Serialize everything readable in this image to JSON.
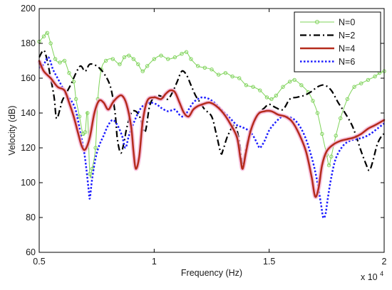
{
  "chart_data": {
    "type": "line",
    "title": "",
    "xlabel": "Frequency (Hz)",
    "ylabel": "Velocity (dB)",
    "x_multiplier_label": "x 10",
    "x_multiplier_exp": "4",
    "xlim": [
      0.5,
      2.0
    ],
    "ylim": [
      60,
      200
    ],
    "x_ticks": [
      0.5,
      1,
      1.5,
      2
    ],
    "x_tick_labels": [
      "0.5",
      "1",
      "1.5",
      "2"
    ],
    "y_ticks": [
      60,
      80,
      100,
      120,
      140,
      160,
      180,
      200
    ],
    "y_tick_labels": [
      "60",
      "80",
      "100",
      "120",
      "140",
      "160",
      "180",
      "200"
    ],
    "grid": false,
    "legend_position": "top-right",
    "series": [
      {
        "name": "N=0",
        "color": "#7fd35a",
        "style": "solid-circle-markers",
        "points": [
          [
            0.5,
            181
          ],
          [
            0.52,
            184
          ],
          [
            0.535,
            186
          ],
          [
            0.55,
            180
          ],
          [
            0.57,
            171
          ],
          [
            0.59,
            169
          ],
          [
            0.61,
            170
          ],
          [
            0.63,
            163
          ],
          [
            0.65,
            158
          ],
          [
            0.66,
            148
          ],
          [
            0.675,
            138
          ],
          [
            0.69,
            128
          ],
          [
            0.7,
            129
          ],
          [
            0.71,
            140
          ],
          [
            0.72,
            105
          ],
          [
            0.73,
            108
          ],
          [
            0.745,
            120
          ],
          [
            0.755,
            148
          ],
          [
            0.77,
            165
          ],
          [
            0.79,
            170
          ],
          [
            0.82,
            171
          ],
          [
            0.85,
            168
          ],
          [
            0.87,
            172
          ],
          [
            0.89,
            173
          ],
          [
            0.91,
            171
          ],
          [
            0.93,
            168
          ],
          [
            0.95,
            164
          ],
          [
            0.97,
            167
          ],
          [
            1.0,
            171
          ],
          [
            1.03,
            173
          ],
          [
            1.06,
            171
          ],
          [
            1.09,
            172
          ],
          [
            1.12,
            174
          ],
          [
            1.14,
            175
          ],
          [
            1.16,
            171
          ],
          [
            1.19,
            167
          ],
          [
            1.22,
            166
          ],
          [
            1.25,
            165
          ],
          [
            1.28,
            162
          ],
          [
            1.31,
            163
          ],
          [
            1.34,
            161
          ],
          [
            1.37,
            160
          ],
          [
            1.4,
            156
          ],
          [
            1.43,
            155
          ],
          [
            1.46,
            153
          ],
          [
            1.49,
            149
          ],
          [
            1.51,
            148
          ],
          [
            1.53,
            150
          ],
          [
            1.56,
            155
          ],
          [
            1.59,
            158
          ],
          [
            1.61,
            159
          ],
          [
            1.64,
            156
          ],
          [
            1.67,
            152
          ],
          [
            1.69,
            147
          ],
          [
            1.71,
            140
          ],
          [
            1.73,
            128
          ],
          [
            1.75,
            116
          ],
          [
            1.76,
            110
          ],
          [
            1.77,
            115
          ],
          [
            1.79,
            127
          ],
          [
            1.81,
            137
          ],
          [
            1.84,
            148
          ],
          [
            1.87,
            155
          ],
          [
            1.9,
            157
          ],
          [
            1.93,
            159
          ],
          [
            1.96,
            161
          ],
          [
            1.98,
            163
          ],
          [
            2.0,
            164
          ]
        ]
      },
      {
        "name": "N=2",
        "color": "#000000",
        "style": "dash-dot",
        "points": [
          [
            0.5,
            172
          ],
          [
            0.52,
            176
          ],
          [
            0.535,
            170
          ],
          [
            0.55,
            160
          ],
          [
            0.565,
            149
          ],
          [
            0.575,
            137
          ],
          [
            0.59,
            142
          ],
          [
            0.6,
            147
          ],
          [
            0.62,
            152
          ],
          [
            0.64,
            157
          ],
          [
            0.66,
            163
          ],
          [
            0.68,
            167
          ],
          [
            0.7,
            164
          ],
          [
            0.72,
            168
          ],
          [
            0.75,
            167
          ],
          [
            0.78,
            163
          ],
          [
            0.81,
            155
          ],
          [
            0.83,
            140
          ],
          [
            0.84,
            125
          ],
          [
            0.855,
            117
          ],
          [
            0.87,
            124
          ],
          [
            0.88,
            131
          ],
          [
            0.9,
            140
          ],
          [
            0.92,
            141
          ],
          [
            0.94,
            137
          ],
          [
            0.96,
            129
          ],
          [
            0.98,
            144
          ],
          [
            1.0,
            149
          ],
          [
            1.02,
            150
          ],
          [
            1.04,
            149
          ],
          [
            1.06,
            148
          ],
          [
            1.08,
            152
          ],
          [
            1.1,
            158
          ],
          [
            1.12,
            164
          ],
          [
            1.14,
            162
          ],
          [
            1.16,
            156
          ],
          [
            1.18,
            150
          ],
          [
            1.2,
            146
          ],
          [
            1.22,
            142
          ],
          [
            1.25,
            138
          ],
          [
            1.27,
            128
          ],
          [
            1.29,
            117
          ],
          [
            1.3,
            119
          ],
          [
            1.32,
            127
          ],
          [
            1.35,
            133
          ],
          [
            1.37,
            124
          ],
          [
            1.385,
            110
          ],
          [
            1.4,
            120
          ],
          [
            1.42,
            130
          ],
          [
            1.45,
            139
          ],
          [
            1.48,
            143
          ],
          [
            1.5,
            145
          ],
          [
            1.53,
            143
          ],
          [
            1.56,
            142
          ],
          [
            1.59,
            148
          ],
          [
            1.62,
            149
          ],
          [
            1.65,
            150
          ],
          [
            1.68,
            152
          ],
          [
            1.71,
            155
          ],
          [
            1.74,
            156
          ],
          [
            1.77,
            153
          ],
          [
            1.8,
            146
          ],
          [
            1.83,
            140
          ],
          [
            1.86,
            133
          ],
          [
            1.88,
            126
          ],
          [
            1.9,
            118
          ],
          [
            1.92,
            111
          ],
          [
            1.935,
            107
          ],
          [
            1.95,
            112
          ],
          [
            1.97,
            122
          ],
          [
            1.99,
            127
          ],
          [
            2.0,
            128
          ]
        ]
      },
      {
        "name": "N=4",
        "color": "#b52b1c",
        "style": "solid-thick",
        "points": [
          [
            0.5,
            170
          ],
          [
            0.52,
            164
          ],
          [
            0.55,
            160
          ],
          [
            0.58,
            155
          ],
          [
            0.61,
            153
          ],
          [
            0.63,
            146
          ],
          [
            0.65,
            138
          ],
          [
            0.67,
            128
          ],
          [
            0.685,
            121
          ],
          [
            0.7,
            119
          ],
          [
            0.72,
            126
          ],
          [
            0.74,
            140
          ],
          [
            0.76,
            147
          ],
          [
            0.78,
            146
          ],
          [
            0.8,
            142
          ],
          [
            0.82,
            146
          ],
          [
            0.84,
            149
          ],
          [
            0.86,
            150
          ],
          [
            0.88,
            145
          ],
          [
            0.9,
            132
          ],
          [
            0.91,
            118
          ],
          [
            0.92,
            108
          ],
          [
            0.935,
            115
          ],
          [
            0.95,
            135
          ],
          [
            0.97,
            147
          ],
          [
            1.0,
            149
          ],
          [
            1.03,
            148
          ],
          [
            1.05,
            151
          ],
          [
            1.07,
            153
          ],
          [
            1.09,
            152
          ],
          [
            1.11,
            146
          ],
          [
            1.13,
            140
          ],
          [
            1.15,
            138
          ],
          [
            1.17,
            142
          ],
          [
            1.19,
            144
          ],
          [
            1.21,
            145
          ],
          [
            1.24,
            146
          ],
          [
            1.27,
            144
          ],
          [
            1.3,
            140
          ],
          [
            1.33,
            134
          ],
          [
            1.36,
            126
          ],
          [
            1.375,
            114
          ],
          [
            1.385,
            108
          ],
          [
            1.4,
            118
          ],
          [
            1.42,
            130
          ],
          [
            1.45,
            139
          ],
          [
            1.48,
            141
          ],
          [
            1.51,
            141
          ],
          [
            1.54,
            139
          ],
          [
            1.57,
            138
          ],
          [
            1.6,
            135
          ],
          [
            1.63,
            128
          ],
          [
            1.66,
            118
          ],
          [
            1.685,
            103
          ],
          [
            1.7,
            92
          ],
          [
            1.715,
            97
          ],
          [
            1.73,
            110
          ],
          [
            1.75,
            118
          ],
          [
            1.78,
            122
          ],
          [
            1.81,
            124
          ],
          [
            1.84,
            125
          ],
          [
            1.87,
            126
          ],
          [
            1.9,
            128
          ],
          [
            1.93,
            131
          ],
          [
            1.96,
            133
          ],
          [
            2.0,
            136
          ]
        ]
      },
      {
        "name": "N=6",
        "color": "#1e1eff",
        "style": "dotted-thick",
        "points": [
          [
            0.5,
            166
          ],
          [
            0.52,
            168
          ],
          [
            0.54,
            172
          ],
          [
            0.56,
            165
          ],
          [
            0.58,
            160
          ],
          [
            0.6,
            155
          ],
          [
            0.62,
            150
          ],
          [
            0.64,
            147
          ],
          [
            0.66,
            141
          ],
          [
            0.68,
            128
          ],
          [
            0.695,
            118
          ],
          [
            0.705,
            108
          ],
          [
            0.715,
            96
          ],
          [
            0.72,
            91
          ],
          [
            0.73,
            102
          ],
          [
            0.745,
            114
          ],
          [
            0.76,
            121
          ],
          [
            0.78,
            127
          ],
          [
            0.8,
            133
          ],
          [
            0.82,
            136
          ],
          [
            0.84,
            133
          ],
          [
            0.86,
            127
          ],
          [
            0.875,
            120
          ],
          [
            0.89,
            127
          ],
          [
            0.91,
            134
          ],
          [
            0.93,
            140
          ],
          [
            0.95,
            144
          ],
          [
            0.98,
            146
          ],
          [
            1.01,
            145
          ],
          [
            1.03,
            143
          ],
          [
            1.06,
            141
          ],
          [
            1.09,
            142
          ],
          [
            1.11,
            139
          ],
          [
            1.13,
            138
          ],
          [
            1.15,
            142
          ],
          [
            1.17,
            146
          ],
          [
            1.19,
            148
          ],
          [
            1.21,
            149
          ],
          [
            1.24,
            148
          ],
          [
            1.27,
            145
          ],
          [
            1.3,
            141
          ],
          [
            1.33,
            137
          ],
          [
            1.36,
            133
          ],
          [
            1.38,
            132
          ],
          [
            1.41,
            130
          ],
          [
            1.43,
            127
          ],
          [
            1.45,
            122
          ],
          [
            1.46,
            120
          ],
          [
            1.48,
            124
          ],
          [
            1.5,
            130
          ],
          [
            1.53,
            135
          ],
          [
            1.56,
            138
          ],
          [
            1.6,
            137
          ],
          [
            1.63,
            133
          ],
          [
            1.66,
            125
          ],
          [
            1.69,
            112
          ],
          [
            1.71,
            100
          ],
          [
            1.725,
            88
          ],
          [
            1.735,
            80
          ],
          [
            1.745,
            82
          ],
          [
            1.755,
            91
          ],
          [
            1.77,
            103
          ],
          [
            1.79,
            114
          ],
          [
            1.82,
            121
          ],
          [
            1.85,
            124
          ],
          [
            1.88,
            125
          ],
          [
            1.91,
            126
          ],
          [
            1.94,
            128
          ],
          [
            1.97,
            131
          ],
          [
            2.0,
            134
          ]
        ]
      }
    ]
  }
}
